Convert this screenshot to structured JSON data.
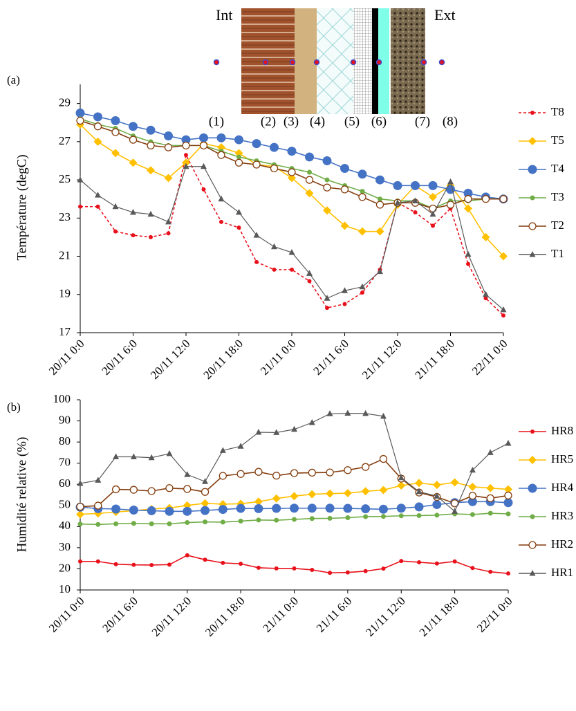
{
  "figure": {
    "left": "Int",
    "right": "Ext",
    "layers": [
      {
        "label": "(1)",
        "color": "#7f7f7f"
      },
      {
        "label": "(2)",
        "color": "#c55a11"
      },
      {
        "label": "(3)",
        "color": "#00b050"
      },
      {
        "label": "(4)",
        "color": "#0000ff"
      },
      {
        "label": "(5)",
        "color": "#ffc000"
      },
      {
        "label": "(6)",
        "color": "#ed7d31"
      },
      {
        "label": "(7)",
        "color": "#a6a6a6"
      },
      {
        "label": "(8)",
        "color": "#e8101a"
      }
    ]
  },
  "chart_data": [
    {
      "type": "line",
      "panel": "(a)",
      "y_label": "Température (degC)",
      "categories": [
        "20/11 0:0",
        null,
        null,
        "20/11 6:0",
        null,
        null,
        "20/11 12:0",
        null,
        null,
        "20/11 18:0",
        null,
        null,
        "21/11 0:0",
        null,
        null,
        "21/11 6:0",
        null,
        null,
        "21/11 12:0",
        null,
        null,
        "21/11 18:0",
        null,
        null,
        "22/11 0:0"
      ],
      "ylim": [
        17,
        30
      ],
      "yticks": [
        17,
        19,
        21,
        23,
        25,
        27,
        29
      ],
      "grid": false,
      "legend": "right",
      "series": [
        {
          "name": "T8",
          "color": "#e8101a",
          "marker": "dot",
          "dashed": true,
          "values": [
            23.6,
            23.6,
            22.3,
            22.1,
            22.0,
            22.2,
            26.3,
            24.5,
            22.8,
            22.5,
            20.7,
            20.3,
            20.3,
            19.7,
            18.3,
            18.5,
            19.1,
            20.3,
            23.8,
            23.3,
            22.6,
            23.5,
            20.6,
            18.8,
            17.9
          ]
        },
        {
          "name": "T5",
          "color": "#ffc000",
          "marker": "diamond",
          "values": [
            27.9,
            27.0,
            26.4,
            25.9,
            25.5,
            25.1,
            25.9,
            26.9,
            26.7,
            26.4,
            25.8,
            25.7,
            25.1,
            24.3,
            23.4,
            22.6,
            22.3,
            22.3,
            23.7,
            24.7,
            24.1,
            24.7,
            23.5,
            22.0,
            21.0
          ]
        },
        {
          "name": "T4",
          "color": "#4472c4",
          "marker": "circle",
          "values": [
            28.5,
            28.3,
            28.1,
            27.8,
            27.6,
            27.3,
            27.1,
            27.2,
            27.2,
            27.1,
            26.9,
            26.7,
            26.5,
            26.2,
            26.0,
            25.6,
            25.3,
            25.0,
            24.7,
            24.7,
            24.7,
            24.5,
            24.3,
            24.1,
            24.0
          ]
        },
        {
          "name": "T3",
          "color": "#70ad47",
          "marker": "small-circle",
          "values": [
            28.2,
            27.9,
            27.7,
            27.3,
            27.0,
            26.8,
            26.8,
            26.8,
            26.5,
            26.2,
            26.0,
            25.8,
            25.6,
            25.4,
            25.0,
            24.7,
            24.4,
            24.0,
            23.9,
            23.9,
            23.5,
            23.9,
            23.9,
            24.0,
            24.0
          ]
        },
        {
          "name": "T2",
          "color": "#843c0c",
          "marker": "open-circle",
          "values": [
            28.1,
            27.8,
            27.5,
            27.1,
            26.8,
            26.7,
            26.8,
            26.8,
            26.3,
            25.9,
            25.8,
            25.6,
            25.4,
            25.0,
            24.6,
            24.5,
            24.1,
            23.7,
            23.8,
            23.8,
            23.5,
            23.7,
            24.0,
            24.0,
            24.0
          ]
        },
        {
          "name": "T1",
          "color": "#595959",
          "marker": "triangle",
          "values": [
            25.0,
            24.2,
            23.6,
            23.3,
            23.2,
            22.8,
            25.7,
            25.7,
            24.0,
            23.3,
            22.1,
            21.5,
            21.2,
            20.1,
            18.8,
            19.2,
            19.4,
            20.2,
            23.8,
            23.9,
            23.2,
            24.9,
            21.1,
            19.0,
            18.2
          ]
        }
      ]
    },
    {
      "type": "line",
      "panel": "(b)",
      "y_label": "Humidité relative (%)",
      "categories": [
        "20/11 0:0",
        null,
        null,
        "20/11 6:0",
        null,
        null,
        "20/11 12:0",
        null,
        null,
        "20/11 18:0",
        null,
        null,
        "21/11 0:0",
        null,
        null,
        "21/11 6:0",
        null,
        null,
        "21/11 12:0",
        null,
        null,
        "21/11 18:0",
        null,
        null,
        "22/11 0:0"
      ],
      "ylim": [
        10,
        100
      ],
      "yticks": [
        10,
        20,
        30,
        40,
        50,
        60,
        70,
        80,
        90,
        100
      ],
      "grid": false,
      "legend": "right",
      "series": [
        {
          "name": "HR8",
          "color": "#e8101a",
          "marker": "dot",
          "values": [
            23.5,
            23.5,
            22.2,
            21.9,
            21.8,
            22.0,
            26.4,
            24.3,
            22.8,
            22.4,
            20.5,
            20.2,
            20.2,
            19.5,
            18.1,
            18.3,
            18.9,
            20.1,
            23.7,
            23.1,
            22.5,
            23.5,
            20.4,
            18.6,
            17.8
          ]
        },
        {
          "name": "HR5",
          "color": "#ffc000",
          "marker": "diamond",
          "values": [
            45.8,
            46.2,
            46.9,
            47.5,
            48.3,
            48.8,
            50.0,
            51.0,
            50.6,
            50.8,
            51.8,
            53.3,
            54.4,
            55.3,
            55.6,
            55.8,
            56.7,
            57.3,
            59.4,
            60.6,
            59.7,
            60.9,
            58.8,
            58.2,
            57.6
          ]
        },
        {
          "name": "HR4",
          "color": "#4472c4",
          "marker": "circle",
          "values": [
            49.2,
            48.5,
            48.3,
            47.8,
            47.5,
            47.2,
            47.2,
            47.6,
            48.1,
            48.6,
            48.5,
            48.6,
            48.7,
            48.7,
            48.7,
            48.6,
            48.4,
            48.2,
            48.7,
            49.3,
            50.4,
            51.3,
            51.8,
            51.8,
            51.3
          ]
        },
        {
          "name": "HR3",
          "color": "#70ad47",
          "marker": "small-circle",
          "values": [
            41.2,
            41.0,
            41.3,
            41.5,
            41.3,
            41.3,
            41.9,
            42.2,
            42.1,
            42.6,
            43.1,
            43.0,
            43.4,
            43.8,
            43.9,
            44.2,
            44.7,
            44.8,
            45.1,
            45.2,
            45.4,
            46.0,
            45.7,
            46.3,
            46.0
          ]
        },
        {
          "name": "HR2",
          "color": "#843c0c",
          "marker": "open-circle",
          "values": [
            49.4,
            49.9,
            57.6,
            57.4,
            56.8,
            58.2,
            57.8,
            56.4,
            64.0,
            64.9,
            65.9,
            64.1,
            65.3,
            65.5,
            65.6,
            66.7,
            68.2,
            72.0,
            62.7,
            56.1,
            54.0,
            51.0,
            54.6,
            53.4,
            54.7
          ]
        },
        {
          "name": "HR1",
          "color": "#595959",
          "marker": "triangle",
          "values": [
            60.4,
            61.9,
            73.0,
            73.0,
            72.6,
            74.5,
            64.6,
            61.3,
            76.0,
            78.0,
            84.6,
            84.5,
            86.0,
            89.2,
            93.4,
            93.6,
            93.5,
            92.2,
            63.1,
            56.5,
            54.4,
            47.2,
            66.7,
            75.0,
            79.4
          ]
        }
      ]
    }
  ]
}
